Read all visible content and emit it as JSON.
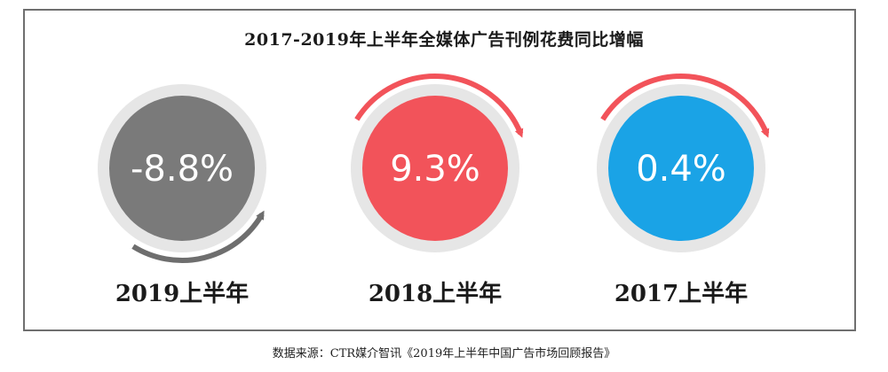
{
  "chart_data": {
    "type": "pie",
    "title": "2017-2019年上半年全媒体广告刊例花费同比增幅",
    "categories": [
      "2019上半年",
      "2018上半年",
      "2017上半年"
    ],
    "values": [
      -8.8,
      9.3,
      0.4
    ],
    "value_labels": [
      "-8.8%",
      "9.3%",
      "0.4%"
    ],
    "unit": "%",
    "colors": [
      "#7a7a7a",
      "#f2535a",
      "#1aa3e6"
    ],
    "arrow_colors": [
      "#6e6e6e",
      "#f2535a",
      "#f2535a"
    ],
    "arrow_direction": [
      "up",
      "down",
      "down"
    ],
    "ring_color": "#e6e6e6"
  },
  "footer": {
    "source": "数据来源：CTR媒介智讯《2019年上半年中国广告市场回顾报告》"
  }
}
